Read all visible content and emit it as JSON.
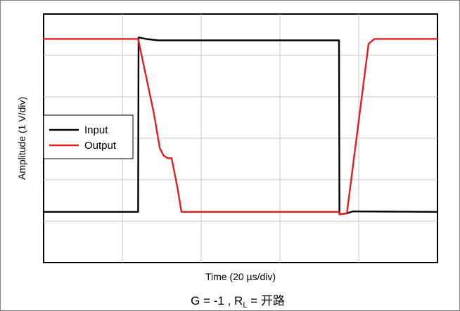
{
  "chart_data": {
    "type": "line",
    "title": "",
    "xlabel": "Time (20 µs/div)",
    "ylabel": "Amplitude (1 V/div)",
    "caption": {
      "prefix": "G = -1 , R",
      "subscript": "L",
      "suffix": " = 开路"
    },
    "xlim": [
      0,
      10
    ],
    "ylim": [
      -2.5,
      2.5
    ],
    "grid": true,
    "x_divisions": 5,
    "y_divisions": 6,
    "legend": {
      "placement": "left-middle"
    },
    "series": [
      {
        "name": "Input",
        "color": "#000000",
        "points": [
          [
            0,
            -1.48
          ],
          [
            2.4,
            -1.48
          ],
          [
            2.41,
            2.03
          ],
          [
            2.6,
            2.0
          ],
          [
            2.9,
            1.97
          ],
          [
            7.5,
            1.97
          ],
          [
            7.51,
            -1.53
          ],
          [
            7.7,
            -1.51
          ],
          [
            7.85,
            -1.47
          ],
          [
            10,
            -1.48
          ]
        ]
      },
      {
        "name": "Output",
        "color": "#e41e1e",
        "points": [
          [
            0,
            2.0
          ],
          [
            2.4,
            2.0
          ],
          [
            2.8,
            0.5
          ],
          [
            2.95,
            -0.2
          ],
          [
            3.05,
            -0.35
          ],
          [
            3.15,
            -0.4
          ],
          [
            3.25,
            -0.4
          ],
          [
            3.4,
            -1.0
          ],
          [
            3.5,
            -1.48
          ],
          [
            7.5,
            -1.48
          ],
          [
            7.51,
            -1.53
          ],
          [
            7.7,
            -1.51
          ],
          [
            8.25,
            1.9
          ],
          [
            8.4,
            2.0
          ],
          [
            10,
            2.0
          ]
        ]
      }
    ]
  }
}
